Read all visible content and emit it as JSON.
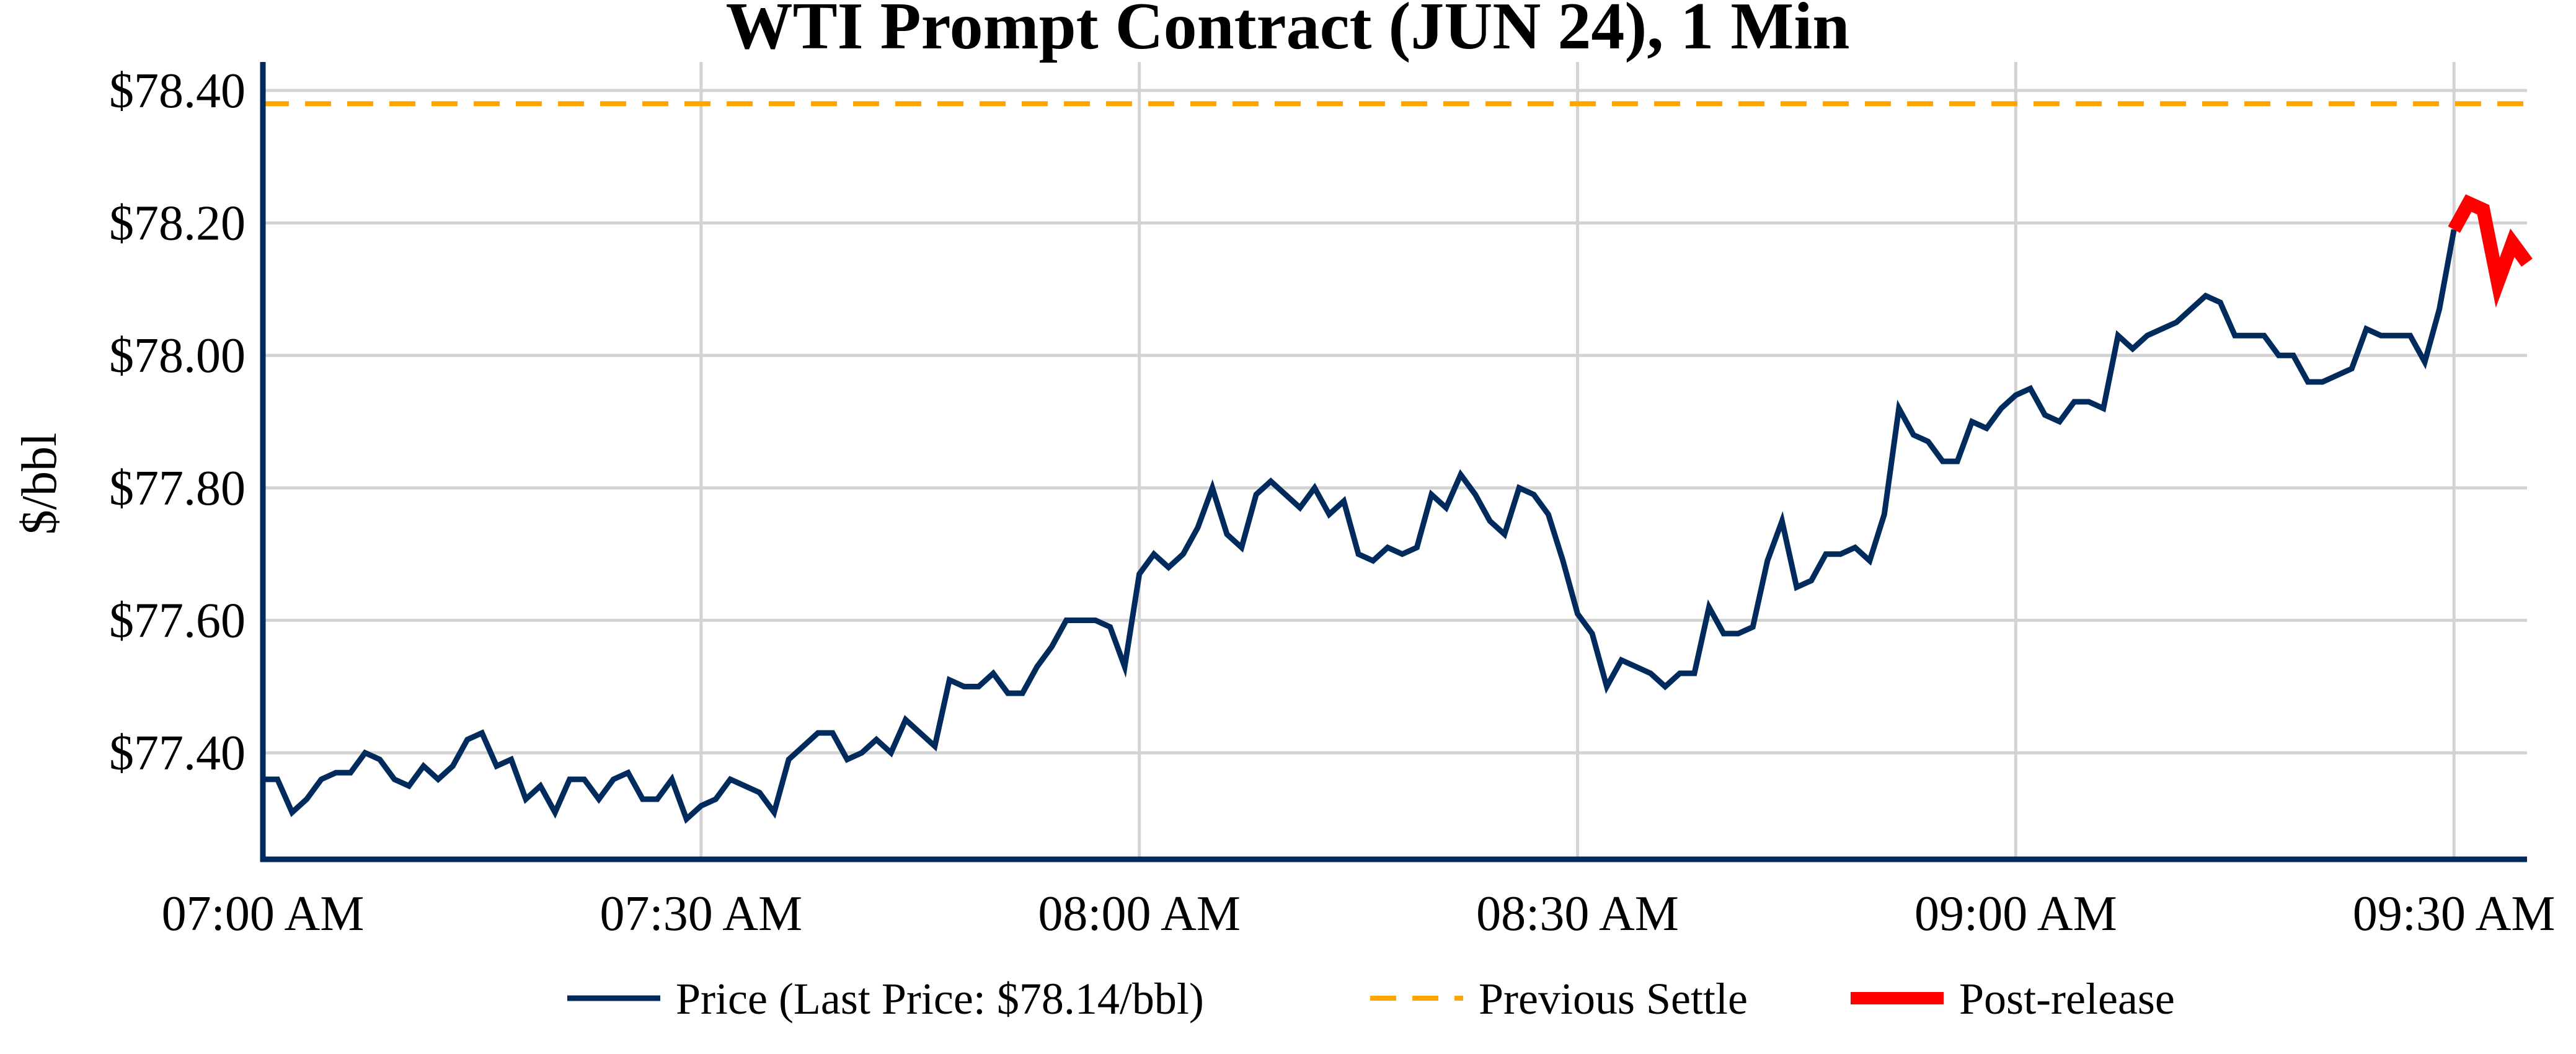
{
  "chart_data": {
    "type": "line",
    "title": "WTI Prompt Contract (JUN 24), 1 Min",
    "xlabel": "",
    "ylabel": "$/bbl",
    "ylim": [
      77.242,
      78.443
    ],
    "xlim_minutes_from_start": [
      0,
      155
    ],
    "start_time": "07:00 AM",
    "interval_minutes": 1,
    "grid": true,
    "legend_position": "bottom",
    "x_ticks": [
      {
        "minute": 0,
        "label": "07:00 AM"
      },
      {
        "minute": 30,
        "label": "07:30 AM"
      },
      {
        "minute": 60,
        "label": "08:00 AM"
      },
      {
        "minute": 90,
        "label": "08:30 AM"
      },
      {
        "minute": 120,
        "label": "09:00 AM"
      },
      {
        "minute": 150,
        "label": "09:30 AM"
      }
    ],
    "y_ticks": [
      {
        "value": 77.4,
        "label": "$77.40"
      },
      {
        "value": 77.6,
        "label": "$77.60"
      },
      {
        "value": 77.8,
        "label": "$77.80"
      },
      {
        "value": 78.0,
        "label": "$78.00"
      },
      {
        "value": 78.2,
        "label": "$78.20"
      },
      {
        "value": 78.4,
        "label": "$78.40"
      }
    ],
    "series": [
      {
        "name": "Price (Last Price: $78.14/bbl)",
        "color": "#002b5c",
        "style": "solid",
        "start_minute": 0,
        "end_minute": 150,
        "values": [
          77.36,
          77.36,
          77.31,
          77.33,
          77.36,
          77.37,
          77.37,
          77.4,
          77.39,
          77.36,
          77.35,
          77.38,
          77.36,
          77.38,
          77.42,
          77.43,
          77.38,
          77.39,
          77.33,
          77.35,
          77.31,
          77.36,
          77.36,
          77.33,
          77.36,
          77.37,
          77.33,
          77.33,
          77.36,
          77.3,
          77.32,
          77.33,
          77.36,
          77.35,
          77.34,
          77.31,
          77.39,
          77.41,
          77.43,
          77.43,
          77.39,
          77.4,
          77.42,
          77.4,
          77.45,
          77.43,
          77.41,
          77.51,
          77.5,
          77.5,
          77.52,
          77.49,
          77.49,
          77.53,
          77.56,
          77.6,
          77.6,
          77.6,
          77.59,
          77.53,
          77.67,
          77.7,
          77.68,
          77.7,
          77.74,
          77.8,
          77.73,
          77.71,
          77.79,
          77.81,
          77.79,
          77.77,
          77.8,
          77.76,
          77.78,
          77.7,
          77.69,
          77.71,
          77.7,
          77.71,
          77.79,
          77.77,
          77.82,
          77.79,
          77.75,
          77.73,
          77.8,
          77.79,
          77.76,
          77.69,
          77.61,
          77.58,
          77.5,
          77.54,
          77.53,
          77.52,
          77.5,
          77.52,
          77.52,
          77.62,
          77.58,
          77.58,
          77.59,
          77.69,
          77.75,
          77.65,
          77.66,
          77.7,
          77.7,
          77.71,
          77.69,
          77.76,
          77.92,
          77.88,
          77.87,
          77.84,
          77.84,
          77.9,
          77.89,
          77.92,
          77.94,
          77.95,
          77.91,
          77.9,
          77.93,
          77.93,
          77.92,
          78.03,
          78.01,
          78.03,
          78.04,
          78.05,
          78.07,
          78.09,
          78.08,
          78.03,
          78.03,
          78.03,
          78.0,
          78.0,
          77.96,
          77.96,
          77.97,
          77.98,
          78.04,
          78.03,
          78.03,
          78.03,
          77.99,
          78.07,
          78.19
        ]
      },
      {
        "name": "Previous Settle",
        "color": "#ffa500",
        "style": "dashed",
        "value": 78.38
      },
      {
        "name": "Post-release",
        "color": "#ff0000",
        "style": "solid-thick",
        "start_minute": 150,
        "end_minute": 155,
        "values": [
          78.19,
          78.23,
          78.22,
          78.11,
          78.17,
          78.14
        ]
      }
    ]
  }
}
